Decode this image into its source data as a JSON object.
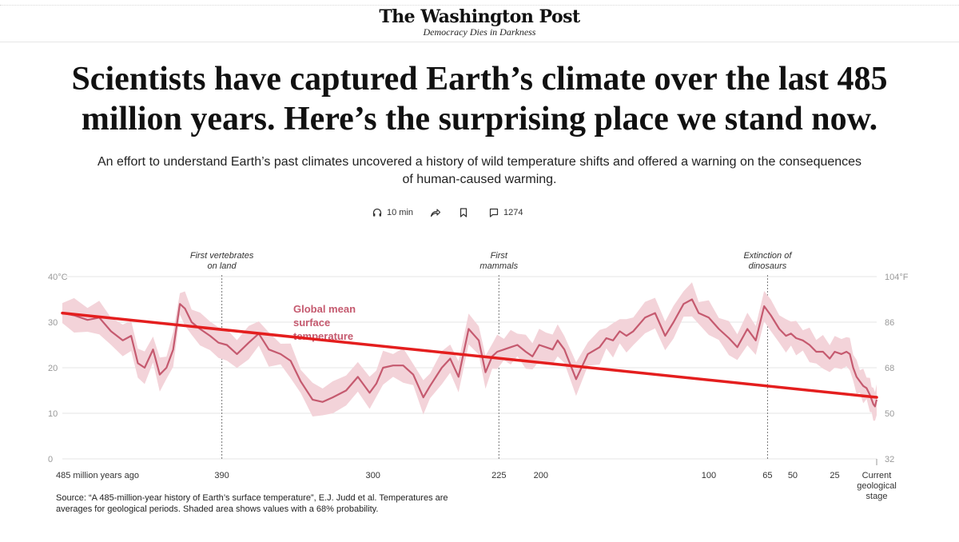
{
  "header": {
    "masthead": "The Washington Post",
    "tagline": "Democracy Dies in Darkness"
  },
  "article": {
    "headline": "Scientists have captured Earth’s climate over the last 485 million years. Here’s the surprising place we stand now.",
    "dek": "An effort to understand Earth’s past climates uncovered a history of wild temperature shifts and offered a warning on the consequences of human-caused warming."
  },
  "actions": {
    "listen_label": "10 min",
    "comments_count": "1274"
  },
  "colors": {
    "series_line": "#c55a6f",
    "uncertainty_band": "#f3d3d9",
    "trend_overlay": "#e41e1e",
    "annotation_line": "#777777",
    "axis_text": "#999999"
  },
  "chart_data": {
    "type": "line",
    "series_label": "Global mean surface temperature",
    "y_left_label": "40°C",
    "y_right_label": "104°F",
    "ylim": [
      0,
      40
    ],
    "xlim": [
      485,
      0
    ],
    "y_left_ticks": [
      "0",
      "10",
      "20",
      "30",
      "40°C"
    ],
    "y_right_ticks": [
      "32",
      "50",
      "68",
      "86",
      "104°F"
    ],
    "x_ticks": [
      {
        "value": 485,
        "label": "485 million years ago"
      },
      {
        "value": 390,
        "label": "390"
      },
      {
        "value": 300,
        "label": "300"
      },
      {
        "value": 225,
        "label": "225"
      },
      {
        "value": 200,
        "label": "200"
      },
      {
        "value": 100,
        "label": "100"
      },
      {
        "value": 65,
        "label": "65"
      },
      {
        "value": 50,
        "label": "50"
      },
      {
        "value": 25,
        "label": "25"
      },
      {
        "value": 0,
        "label": "Current geological stage"
      }
    ],
    "annotations": [
      {
        "x": 390,
        "text": "First vertebrates on land"
      },
      {
        "x": 225,
        "text": "First mammals"
      },
      {
        "x": 65,
        "text": "Extinction of dinosaurs"
      }
    ],
    "series": [
      {
        "name": "Global mean surface temperature",
        "x": [
          485,
          478,
          470,
          463,
          456,
          449,
          444,
          440,
          436,
          431,
          427,
          423,
          419,
          415,
          412,
          408,
          403,
          397,
          392,
          387,
          381,
          374,
          368,
          362,
          355,
          349,
          343,
          336,
          330,
          324,
          316,
          309,
          302,
          298,
          294,
          288,
          282,
          276,
          270,
          266,
          259,
          254,
          249,
          243,
          237,
          233,
          229,
          226,
          222,
          218,
          214,
          209,
          205,
          201,
          197,
          193,
          190,
          186,
          179,
          172,
          165,
          161,
          157,
          153,
          149,
          145,
          138,
          132,
          126,
          121,
          115,
          110,
          106,
          100,
          94,
          88,
          83,
          77,
          72,
          67,
          63,
          58,
          54,
          51,
          48,
          44,
          40,
          36,
          32,
          28,
          25,
          21,
          18,
          16,
          14,
          12,
          10,
          8,
          6,
          4,
          3,
          2,
          1,
          0
        ],
        "y": [
          32,
          31.5,
          30.5,
          31,
          28,
          26,
          27,
          21,
          20,
          24,
          18.5,
          20,
          24,
          34,
          33,
          30,
          28.5,
          27,
          25.5,
          25,
          23,
          25.5,
          27.5,
          24,
          23,
          21.5,
          17,
          13,
          12.5,
          13.5,
          15,
          18,
          14.5,
          16.5,
          20,
          20.5,
          20.5,
          18.5,
          13.5,
          16,
          20,
          22,
          18,
          28.5,
          26,
          19,
          22.5,
          23.5,
          24,
          24.5,
          25,
          23.5,
          22.5,
          25,
          24.5,
          24,
          26,
          24,
          17.5,
          23,
          24.5,
          26.5,
          26,
          28,
          27,
          28,
          31,
          32,
          27,
          30,
          34,
          35,
          32,
          31,
          28.5,
          26.5,
          24.5,
          28.5,
          26,
          33.5,
          31.5,
          28.5,
          27,
          27.5,
          26.5,
          26,
          25,
          23.5,
          23.5,
          22,
          23.5,
          23,
          23.5,
          23,
          20,
          18,
          17,
          16,
          15.5,
          14,
          13,
          12,
          11.5,
          13
        ]
      }
    ],
    "overlay_trend": {
      "name": "Trend line overlay",
      "x": [
        485,
        0
      ],
      "y": [
        32,
        13.5
      ]
    },
    "source": "Source: “A 485-million-year history of Earth’s surface temperature”, E.J. Judd et al. Temperatures are averages for geological periods. Shaded area shows values with a 68% probability."
  }
}
